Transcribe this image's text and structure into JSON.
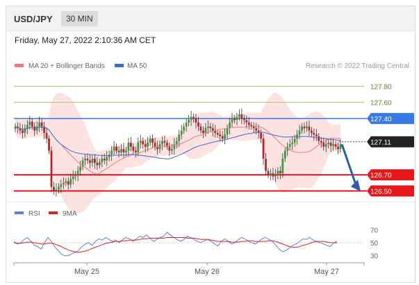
{
  "header": {
    "symbol": "USD/JPY",
    "timeframe": "30 MIN"
  },
  "datetime": "Friday, May 27, 2022 2:10:36 AM CET",
  "legend": {
    "ma_bb": "MA 20 + Bollinger Bands",
    "ma50": "MA 50",
    "rsi": "RSI",
    "ma9": "9MA"
  },
  "credit": "Research © 2022 Trading Central",
  "colors": {
    "ma20": "#ee7878",
    "band_fill": "#fde2e2",
    "ma50": "#3a6fc8",
    "candle_up": "#3b9a3b",
    "candle_down": "#b5262c",
    "resistance": "#3a78e8",
    "support": "#e6171b",
    "target": "#9acd6a",
    "current": "#222222",
    "arrow": "#2d5da8",
    "rsi": "#5a82d8",
    "rsi_ma": "#e02020"
  },
  "chart_data": [
    {
      "type": "candlestick",
      "title": "USD/JPY",
      "timeframe": "30 MIN",
      "x_ticks": [
        "May 25",
        "May 26",
        "May 27"
      ],
      "ylim": [
        126.4,
        127.95
      ],
      "levels": [
        {
          "value": 127.8,
          "label": "127.80",
          "kind": "target"
        },
        {
          "value": 127.6,
          "label": "127.60",
          "kind": "target"
        },
        {
          "value": 127.4,
          "label": "127.40",
          "kind": "resistance"
        },
        {
          "value": 127.11,
          "label": "127.11",
          "kind": "current"
        },
        {
          "value": 126.7,
          "label": "126.70",
          "kind": "support"
        },
        {
          "value": 126.5,
          "label": "126.50",
          "kind": "support"
        }
      ],
      "close": [
        127.3,
        127.28,
        127.25,
        127.22,
        127.28,
        127.32,
        127.36,
        127.3,
        127.25,
        127.3,
        127.35,
        127.3,
        127.22,
        127.15,
        127.0,
        126.55,
        126.5,
        126.52,
        126.55,
        126.58,
        126.6,
        126.62,
        126.58,
        126.65,
        126.68,
        126.7,
        126.75,
        126.8,
        126.88,
        126.9,
        126.88,
        126.85,
        126.9,
        126.85,
        126.82,
        126.86,
        126.9,
        126.88,
        126.92,
        126.95,
        127.0,
        127.05,
        127.0,
        126.98,
        127.02,
        126.98,
        127.0,
        127.1,
        127.05,
        127.0,
        126.98,
        127.1,
        127.12,
        127.08,
        127.05,
        127.1,
        127.15,
        127.1,
        127.05,
        127.02,
        127.08,
        127.12,
        127.1,
        127.05,
        127.0,
        127.02,
        127.08,
        127.12,
        127.2,
        127.25,
        127.3,
        127.35,
        127.38,
        127.42,
        127.4,
        127.35,
        127.3,
        127.25,
        127.22,
        127.28,
        127.3,
        127.28,
        127.25,
        127.22,
        127.2,
        127.18,
        127.15,
        127.2,
        127.28,
        127.35,
        127.4,
        127.38,
        127.42,
        127.45,
        127.4,
        127.38,
        127.35,
        127.32,
        127.3,
        127.28,
        127.25,
        127.22,
        127.15,
        126.9,
        126.75,
        126.7,
        126.72,
        126.68,
        126.7,
        126.75,
        126.72,
        126.9,
        127.0,
        127.05,
        127.08,
        127.1,
        127.15,
        127.2,
        127.25,
        127.3,
        127.28,
        127.3,
        127.25,
        127.22,
        127.2,
        127.18,
        127.12,
        127.1,
        127.05,
        127.08,
        127.1,
        127.06,
        127.08,
        127.05,
        127.02,
        127.08
      ],
      "open_offset": -0.03
    },
    {
      "type": "line",
      "title": "RSI",
      "series": [
        {
          "name": "RSI",
          "values": [
            52,
            48,
            50,
            55,
            58,
            52,
            46,
            44,
            40,
            50,
            58,
            52,
            44,
            38,
            32,
            30,
            30,
            33,
            35,
            38,
            44,
            48,
            50,
            46,
            52,
            56,
            54,
            58,
            55,
            52,
            54,
            50,
            55,
            58,
            56,
            52,
            56,
            60,
            58,
            62,
            57,
            52,
            55,
            58,
            60,
            66,
            62,
            58,
            55,
            52,
            55,
            60,
            58,
            55,
            52,
            50,
            53,
            55,
            52,
            48,
            45,
            52,
            56,
            52,
            48,
            50,
            55,
            58,
            56,
            52,
            50,
            48,
            52,
            56,
            58,
            55,
            52,
            46,
            40,
            36,
            38,
            42,
            46,
            48,
            52,
            56,
            55,
            58,
            54,
            52,
            50,
            48,
            46,
            44,
            50,
            52
          ]
        },
        {
          "name": "9MA",
          "values": [
            50,
            49,
            49,
            50,
            51,
            51,
            50,
            49,
            48,
            48,
            49,
            49,
            48,
            46,
            44,
            41,
            39,
            37,
            36,
            35,
            36,
            37,
            39,
            41,
            43,
            45,
            47,
            49,
            50,
            51,
            52,
            52,
            53,
            53,
            54,
            54,
            54,
            55,
            56,
            56,
            57,
            57,
            57,
            57,
            57,
            58,
            58,
            58,
            58,
            58,
            58,
            57,
            57,
            57,
            56,
            55,
            55,
            55,
            54,
            53,
            52,
            52,
            52,
            52,
            51,
            51,
            51,
            52,
            52,
            53,
            53,
            52,
            52,
            52,
            52,
            53,
            53,
            52,
            50,
            48,
            46,
            44,
            43,
            43,
            44,
            46,
            47,
            49,
            51,
            52,
            52,
            52,
            51,
            50,
            50,
            50
          ]
        }
      ],
      "y_ticks": [
        70,
        50,
        30
      ],
      "ylim": [
        20,
        80
      ],
      "x_ticks": [
        "May 25",
        "May 26",
        "May 27"
      ]
    }
  ]
}
